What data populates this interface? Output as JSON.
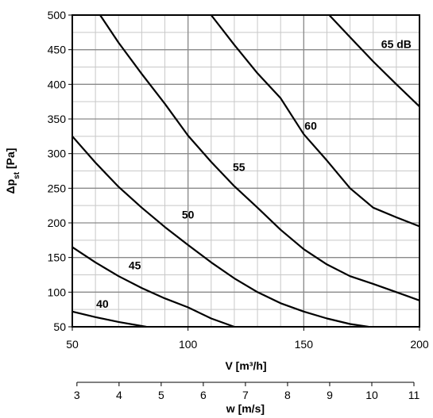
{
  "chart_data": {
    "type": "line",
    "x": {
      "label": "V [m³/h]",
      "min": 50,
      "max": 200,
      "ticks": [
        50,
        100,
        150,
        200
      ],
      "minor_step": 10
    },
    "y": {
      "label_main": "Δp",
      "label_sub": "st",
      "label_unit": " [Pa]",
      "min": 50,
      "max": 500,
      "ticks": [
        50,
        100,
        150,
        200,
        250,
        300,
        350,
        400,
        450,
        500
      ],
      "minor_step": 25
    },
    "secondary_x": {
      "label": "w [m/s]",
      "ticks": [
        3,
        4,
        5,
        6,
        7,
        8,
        9,
        10,
        11
      ],
      "v_at_w3": 52,
      "v_per_w": 18.2
    },
    "grid": true,
    "series": [
      {
        "name": "40",
        "points": [
          [
            50,
            72
          ],
          [
            60,
            64
          ],
          [
            70,
            57
          ],
          [
            82,
            50
          ]
        ]
      },
      {
        "name": "45",
        "points": [
          [
            50,
            165
          ],
          [
            60,
            143
          ],
          [
            70,
            123
          ],
          [
            80,
            106
          ],
          [
            90,
            91
          ],
          [
            100,
            78
          ],
          [
            110,
            62
          ],
          [
            120,
            50
          ]
        ]
      },
      {
        "name": "50",
        "points": [
          [
            50,
            325
          ],
          [
            60,
            287
          ],
          [
            70,
            252
          ],
          [
            80,
            222
          ],
          [
            90,
            194
          ],
          [
            100,
            168
          ],
          [
            110,
            143
          ],
          [
            120,
            120
          ],
          [
            130,
            100
          ],
          [
            140,
            84
          ],
          [
            150,
            72
          ],
          [
            160,
            62
          ],
          [
            170,
            54
          ],
          [
            178,
            50
          ]
        ]
      },
      {
        "name": "55",
        "points": [
          [
            62,
            500
          ],
          [
            70,
            460
          ],
          [
            80,
            415
          ],
          [
            90,
            372
          ],
          [
            100,
            326
          ],
          [
            110,
            288
          ],
          [
            120,
            253
          ],
          [
            130,
            222
          ],
          [
            140,
            190
          ],
          [
            150,
            162
          ],
          [
            160,
            140
          ],
          [
            170,
            123
          ],
          [
            180,
            112
          ],
          [
            190,
            100
          ],
          [
            200,
            88
          ]
        ]
      },
      {
        "name": "60",
        "points": [
          [
            110,
            500
          ],
          [
            120,
            457
          ],
          [
            130,
            416
          ],
          [
            140,
            380
          ],
          [
            150,
            328
          ],
          [
            160,
            290
          ],
          [
            170,
            250
          ],
          [
            180,
            222
          ],
          [
            190,
            208
          ],
          [
            200,
            195
          ]
        ]
      },
      {
        "name": "65 dB",
        "points": [
          [
            161,
            500
          ],
          [
            170,
            468
          ],
          [
            180,
            433
          ],
          [
            190,
            400
          ],
          [
            200,
            368
          ]
        ]
      }
    ],
    "curve_labels": [
      {
        "text": "40",
        "x": 63,
        "y": 83
      },
      {
        "text": "45",
        "x": 77,
        "y": 139
      },
      {
        "text": "50",
        "x": 100,
        "y": 212
      },
      {
        "text": "55",
        "x": 122,
        "y": 281
      },
      {
        "text": "60",
        "x": 153,
        "y": 340
      },
      {
        "text": "65 dB",
        "x": 190,
        "y": 458
      }
    ]
  }
}
